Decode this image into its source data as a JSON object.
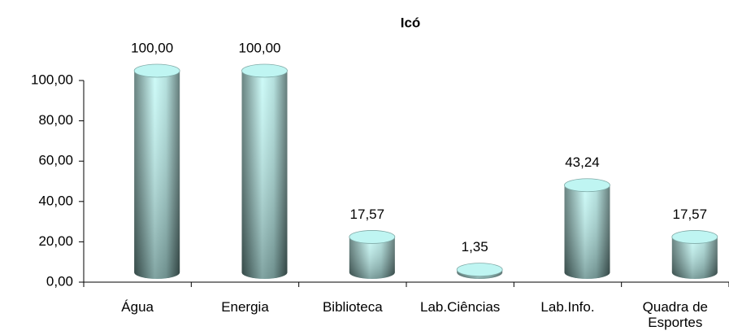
{
  "chart_data": {
    "type": "bar",
    "title": "Icó",
    "categories": [
      "Água",
      "Energia",
      "Biblioteca",
      "Lab.Ciências",
      "Lab.Info.",
      "Quadra de Esportes"
    ],
    "values": [
      100,
      100,
      17.57,
      1.35,
      43.24,
      17.57
    ],
    "value_labels": [
      "100,00",
      "100,00",
      "17,57",
      "1,35",
      "43,24",
      "17,57"
    ],
    "color": "#bff5f2",
    "ylim": [
      0,
      100
    ],
    "yticks": [
      {
        "value": 0,
        "label": "0,00"
      },
      {
        "value": 20,
        "label": "20,00"
      },
      {
        "value": 40,
        "label": "40,00"
      },
      {
        "value": 60,
        "label": "60,00"
      },
      {
        "value": 80,
        "label": "80,00"
      },
      {
        "value": 100,
        "label": "100,00"
      }
    ]
  }
}
